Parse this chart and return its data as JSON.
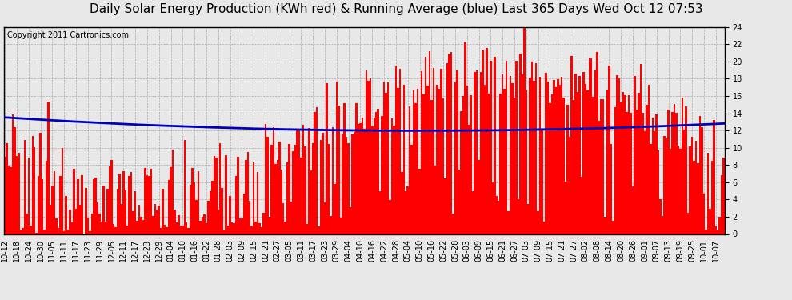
{
  "title": "Daily Solar Energy Production (KWh red) & Running Average (blue) Last 365 Days Wed Oct 12 07:53",
  "copyright_text": "Copyright 2011 Cartronics.com",
  "y_min": 0.0,
  "y_max": 24.0,
  "y_ticks": [
    0.0,
    2.0,
    4.0,
    6.0,
    8.0,
    10.0,
    12.0,
    14.0,
    16.0,
    18.0,
    20.0,
    22.0,
    24.0
  ],
  "bar_color": "#FF0000",
  "line_color": "#0000BB",
  "background_color": "#E8E8E8",
  "plot_bg_color": "#E8E8E8",
  "grid_color": "#AAAAAA",
  "n_days": 365,
  "x_tick_labels": [
    "10-12",
    "10-18",
    "10-24",
    "10-30",
    "11-05",
    "11-11",
    "11-17",
    "11-23",
    "11-29",
    "12-05",
    "12-11",
    "12-17",
    "12-23",
    "12-29",
    "01-04",
    "01-10",
    "01-16",
    "01-22",
    "01-28",
    "02-03",
    "02-09",
    "02-15",
    "02-21",
    "02-27",
    "03-05",
    "03-11",
    "03-17",
    "03-23",
    "03-29",
    "04-04",
    "04-10",
    "04-16",
    "04-22",
    "04-28",
    "05-04",
    "05-10",
    "05-16",
    "05-22",
    "05-28",
    "06-03",
    "06-09",
    "06-15",
    "06-21",
    "06-27",
    "07-03",
    "07-09",
    "07-15",
    "07-21",
    "07-27",
    "08-02",
    "08-08",
    "08-14",
    "08-20",
    "08-26",
    "09-01",
    "09-07",
    "09-13",
    "09-19",
    "09-25",
    "10-01",
    "10-07"
  ],
  "x_tick_positions": [
    0,
    6,
    12,
    18,
    24,
    30,
    36,
    42,
    48,
    54,
    60,
    66,
    72,
    78,
    84,
    90,
    96,
    102,
    108,
    114,
    120,
    126,
    132,
    138,
    144,
    150,
    156,
    162,
    168,
    174,
    180,
    186,
    192,
    198,
    204,
    210,
    216,
    222,
    228,
    234,
    240,
    246,
    252,
    258,
    264,
    270,
    276,
    282,
    288,
    294,
    300,
    306,
    312,
    318,
    324,
    330,
    336,
    342,
    348,
    354,
    360
  ],
  "title_fontsize": 11,
  "tick_fontsize": 7,
  "copyright_fontsize": 7,
  "line_width": 2.0
}
